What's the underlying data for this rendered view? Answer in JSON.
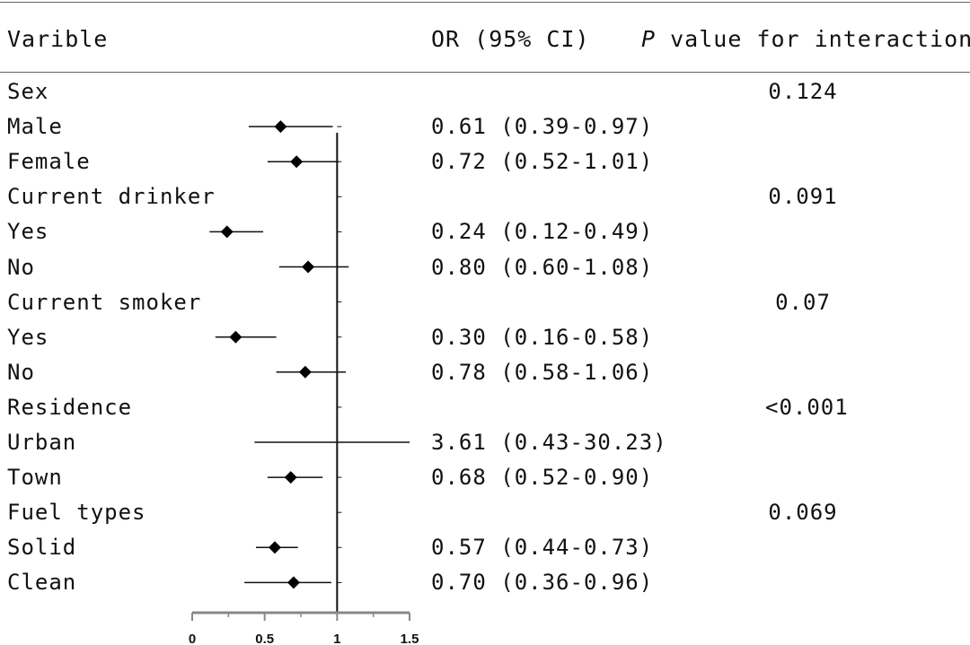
{
  "header": {
    "variable_label": "Varible",
    "or_label": "OR (95% CI)",
    "p_italic": "P",
    "p_rest": " value for interaction"
  },
  "rows": [
    {
      "label": "Sex",
      "or_text": "",
      "p_text": "0.124"
    },
    {
      "label": "Male",
      "or_text": "0.61 (0.39-0.97)",
      "p_text": ""
    },
    {
      "label": "Female",
      "or_text": "0.72 (0.52-1.01)",
      "p_text": ""
    },
    {
      "label": "Current drinker",
      "or_text": "",
      "p_text": "0.091"
    },
    {
      "label": "Yes",
      "or_text": "0.24 (0.12-0.49)",
      "p_text": ""
    },
    {
      "label": "No",
      "or_text": "0.80 (0.60-1.08)",
      "p_text": ""
    },
    {
      "label": "Current smoker",
      "or_text": "",
      "p_text": "0.07"
    },
    {
      "label": "Yes",
      "or_text": "0.30 (0.16-0.58)",
      "p_text": ""
    },
    {
      "label": "No",
      "or_text": "0.78 (0.58-1.06)",
      "p_text": ""
    },
    {
      "label": "Residence",
      "or_text": "",
      "p_text": "<0.001"
    },
    {
      "label": "Urban",
      "or_text": "3.61 (0.43-30.23)",
      "p_text": ""
    },
    {
      "label": "Town",
      "or_text": "0.68 (0.52-0.90)",
      "p_text": ""
    },
    {
      "label": "Fuel types",
      "or_text": "",
      "p_text": "0.069"
    },
    {
      "label": "Solid",
      "or_text": "0.57 (0.44-0.73)",
      "p_text": ""
    },
    {
      "label": "Clean",
      "or_text": "0.70 (0.36-0.96)",
      "p_text": ""
    }
  ],
  "chart_data": {
    "type": "forest",
    "title": "",
    "xlabel": "",
    "ylabel": "",
    "xlim": [
      0,
      1.5
    ],
    "x_ticks": [
      "0",
      "0.5",
      "1",
      "1.5"
    ],
    "x_tick_values": [
      0,
      0.5,
      1,
      1.5
    ],
    "reference_line": 1,
    "points": [
      {
        "row": 1,
        "or": 0.61,
        "lo": 0.39,
        "hi": 0.97
      },
      {
        "row": 2,
        "or": 0.72,
        "lo": 0.52,
        "hi": 1.01
      },
      {
        "row": 4,
        "or": 0.24,
        "lo": 0.12,
        "hi": 0.49
      },
      {
        "row": 5,
        "or": 0.8,
        "lo": 0.6,
        "hi": 1.08
      },
      {
        "row": 7,
        "or": 0.3,
        "lo": 0.16,
        "hi": 0.58
      },
      {
        "row": 8,
        "or": 0.78,
        "lo": 0.58,
        "hi": 1.06
      },
      {
        "row": 10,
        "or": 3.61,
        "lo": 0.43,
        "hi": 30.23,
        "clipped": true
      },
      {
        "row": 11,
        "or": 0.68,
        "lo": 0.52,
        "hi": 0.9
      },
      {
        "row": 13,
        "or": 0.57,
        "lo": 0.44,
        "hi": 0.73
      },
      {
        "row": 14,
        "or": 0.7,
        "lo": 0.36,
        "hi": 0.96
      }
    ],
    "marker": "diamond",
    "colors": {
      "marker": "#000000",
      "axis": "#888888",
      "line": "#111111"
    }
  }
}
